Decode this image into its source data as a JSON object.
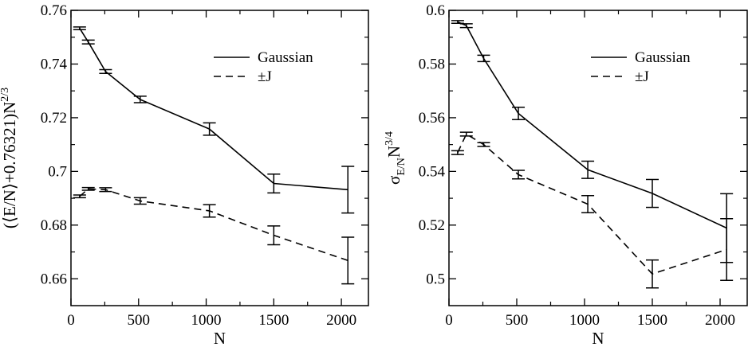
{
  "chart_data": [
    {
      "type": "line",
      "xlabel": "N",
      "ylabel": "(⟨E/N⟩+0.76321)N",
      "ylabel_sup": "2/3",
      "xlim": [
        0,
        2200
      ],
      "ylim": [
        0.65,
        0.76
      ],
      "xticks": [
        0,
        500,
        1000,
        1500,
        2000
      ],
      "xtick_labels": [
        "0",
        "500",
        "1000",
        "1500",
        "2000"
      ],
      "yticks": [
        0.66,
        0.68,
        0.7,
        0.72,
        0.74,
        0.76
      ],
      "ytick_labels": [
        "0.66",
        "0.68",
        "0.7",
        "0.72",
        "0.74",
        "0.76"
      ],
      "legend_position": "top-right",
      "series": [
        {
          "name": "Gaussian",
          "dash": "solid",
          "x": [
            64,
            128,
            256,
            512,
            1024,
            1500,
            2048
          ],
          "y": [
            0.7533,
            0.7482,
            0.7372,
            0.7268,
            0.7158,
            0.6955,
            0.6932
          ],
          "err": [
            0.0005,
            0.0007,
            0.0007,
            0.0012,
            0.0023,
            0.0035,
            0.0087
          ]
        },
        {
          "name": "±J",
          "dash": "dashed",
          "x": [
            64,
            128,
            256,
            512,
            1024,
            1500,
            2048
          ],
          "y": [
            0.6907,
            0.6935,
            0.6932,
            0.689,
            0.6853,
            0.6762,
            0.6668
          ],
          "err": [
            0.0005,
            0.0005,
            0.0007,
            0.0012,
            0.0023,
            0.0035,
            0.0087
          ]
        }
      ]
    },
    {
      "type": "line",
      "xlabel": "N",
      "ylabel": "σ",
      "ylabel_sub": "E/N",
      "ylabel_tail": "N",
      "ylabel_sup": "3/4",
      "xlim": [
        0,
        2200
      ],
      "ylim": [
        0.49,
        0.6
      ],
      "xticks": [
        0,
        500,
        1000,
        1500,
        2000
      ],
      "xtick_labels": [
        "0",
        "500",
        "1000",
        "1500",
        "2000"
      ],
      "yticks": [
        0.5,
        0.52,
        0.54,
        0.56,
        0.58,
        0.6
      ],
      "ytick_labels": [
        "0.5",
        "0.52",
        "0.54",
        "0.56",
        "0.58",
        "0.6"
      ],
      "legend_position": "top-right",
      "series": [
        {
          "name": "Gaussian",
          "dash": "solid",
          "x": [
            64,
            128,
            256,
            512,
            1024,
            1500,
            2048
          ],
          "y": [
            0.5957,
            0.5943,
            0.5821,
            0.5616,
            0.5406,
            0.5318,
            0.5189
          ],
          "err": [
            0.0005,
            0.0007,
            0.0012,
            0.0023,
            0.0032,
            0.0052,
            0.0128
          ]
        },
        {
          "name": "±J",
          "dash": "dashed",
          "x": [
            64,
            128,
            256,
            512,
            1024,
            1500,
            2048
          ],
          "y": [
            0.547,
            0.5539,
            0.55,
            0.5388,
            0.5278,
            0.5018,
            0.5109
          ],
          "err": [
            0.0007,
            0.0007,
            0.0007,
            0.0016,
            0.0032,
            0.0052,
            0.0115
          ]
        }
      ]
    }
  ]
}
